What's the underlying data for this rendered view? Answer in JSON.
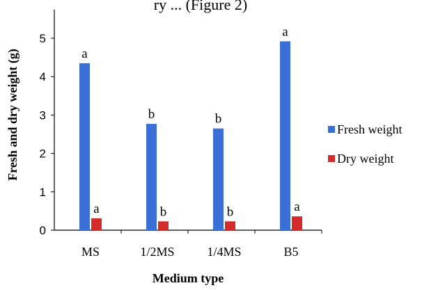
{
  "header_fragment": "ry ... (Figure 2)",
  "colors": {
    "fresh": "#3a6fd6",
    "dry": "#d42a2a",
    "axis": "#000000"
  },
  "chart_data": {
    "type": "bar",
    "categories": [
      "MS",
      "1/2MS",
      "1/4MS",
      "B5"
    ],
    "series": [
      {
        "name": "Fresh weight",
        "values": [
          4.35,
          2.77,
          2.65,
          4.92
        ],
        "letters": [
          "a",
          "b",
          "b",
          "a"
        ]
      },
      {
        "name": "Dry weight",
        "values": [
          0.31,
          0.23,
          0.23,
          0.36
        ],
        "letters": [
          "a",
          "b",
          "b",
          "a"
        ]
      }
    ],
    "xlabel": "Medium type",
    "ylabel": "Fresh and dry weight (g)",
    "ylim": [
      0,
      5
    ],
    "yticks": [
      "0",
      "1",
      "2",
      "3",
      "4",
      "5"
    ],
    "legend_position": "right",
    "grid": false
  }
}
